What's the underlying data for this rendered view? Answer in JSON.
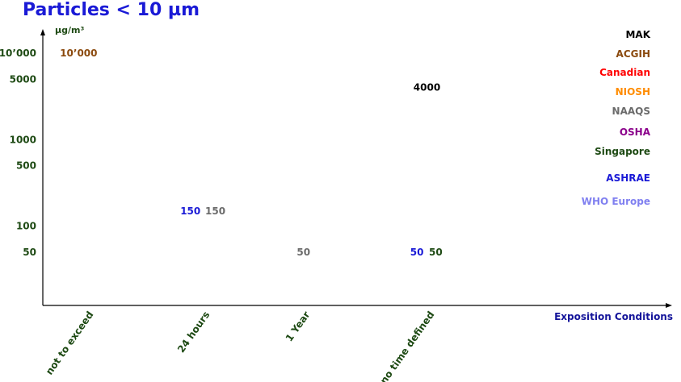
{
  "chart_data": {
    "type": "scatter",
    "title": "Particles < 10 µm",
    "ylabel": "µg/m³",
    "xlabel": "Exposition Conditions",
    "y_scale": "log",
    "y_ticks": [
      {
        "value": 10000,
        "label": "10’000"
      },
      {
        "value": 5000,
        "label": "5000"
      },
      {
        "value": 1000,
        "label": "1000"
      },
      {
        "value": 500,
        "label": "500"
      },
      {
        "value": 100,
        "label": "100"
      },
      {
        "value": 50,
        "label": "50"
      }
    ],
    "categories": [
      "not to exceed",
      "24 hours",
      "1 Year",
      "no time defined"
    ],
    "legend_placement": "right",
    "series": [
      {
        "name": "MAK",
        "color": "#000000",
        "points": [
          {
            "category": "no time defined",
            "value": 4000,
            "label": "4000"
          }
        ]
      },
      {
        "name": "ACGIH",
        "color": "#8b4a0e",
        "points": [
          {
            "category": "not to exceed",
            "value": 10000,
            "label": "10’000"
          }
        ]
      },
      {
        "name": "Canadian",
        "color": "#ff0000",
        "points": []
      },
      {
        "name": "NIOSH",
        "color": "#ff8c00",
        "points": []
      },
      {
        "name": "NAAQS",
        "color": "#6b6b6b",
        "points": [
          {
            "category": "24 hours",
            "value": 150,
            "label": "150"
          },
          {
            "category": "1 Year",
            "value": 50,
            "label": "50"
          }
        ]
      },
      {
        "name": "OSHA",
        "color": "#8b008b",
        "points": []
      },
      {
        "name": "Singapore",
        "color": "#1e4a14",
        "points": [
          {
            "category": "no time defined",
            "value": 50,
            "label": "50"
          }
        ]
      },
      {
        "name": "ASHRAE",
        "color": "#1a1ad6",
        "points": [
          {
            "category": "24 hours",
            "value": 150,
            "label": "150"
          },
          {
            "category": "no time defined",
            "value": 50,
            "label": "50"
          }
        ]
      },
      {
        "name": "WHO Europe",
        "color": "#8080f0",
        "points": []
      }
    ]
  }
}
